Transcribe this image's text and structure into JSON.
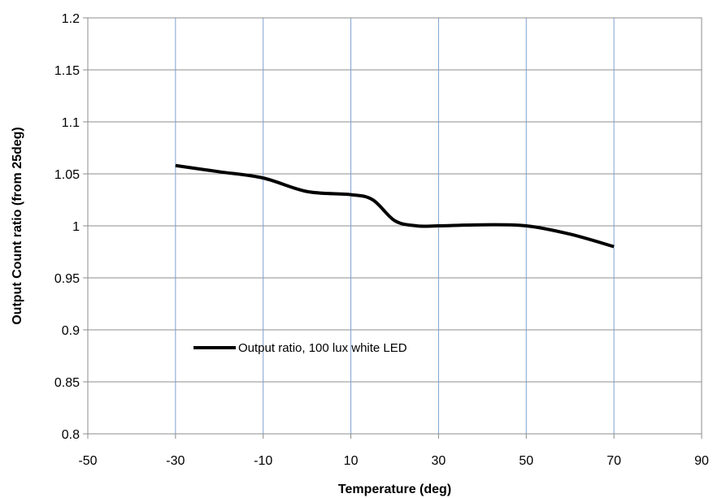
{
  "chart_data": {
    "type": "line",
    "title": "",
    "xlabel": "Temperature (deg)",
    "ylabel": "Output Count ratio (from 25deg)",
    "xlim": [
      -50,
      90
    ],
    "ylim": [
      0.8,
      1.2
    ],
    "x_ticks": [
      -50,
      -30,
      -10,
      10,
      30,
      50,
      70,
      90
    ],
    "x_tick_labels": [
      "-50",
      "-30",
      "-10",
      "10",
      "30",
      "50",
      "70",
      "90"
    ],
    "y_ticks": [
      0.8,
      0.85,
      0.9,
      0.95,
      1.0,
      1.05,
      1.1,
      1.15,
      1.2
    ],
    "y_tick_labels": [
      "0.8",
      "0.85",
      "0.9",
      "0.95",
      "1",
      "1.05",
      "1.1",
      "1.15",
      "1.2"
    ],
    "grid": {
      "vertical": true,
      "horizontal": true,
      "vertical_color": "#7fa3d1",
      "horizontal_color": "#8c8c8c"
    },
    "legend": {
      "position": "lower-left, inside plot"
    },
    "series": [
      {
        "name": "Output ratio, 100 lux white LED",
        "color": "#000000",
        "x": [
          -30,
          -20,
          -10,
          0,
          10,
          15,
          20,
          25,
          30,
          40,
          50,
          60,
          70
        ],
        "y": [
          1.058,
          1.052,
          1.046,
          1.033,
          1.03,
          1.025,
          1.005,
          1.0,
          1.0,
          1.001,
          1.0,
          0.992,
          0.98
        ]
      }
    ]
  }
}
